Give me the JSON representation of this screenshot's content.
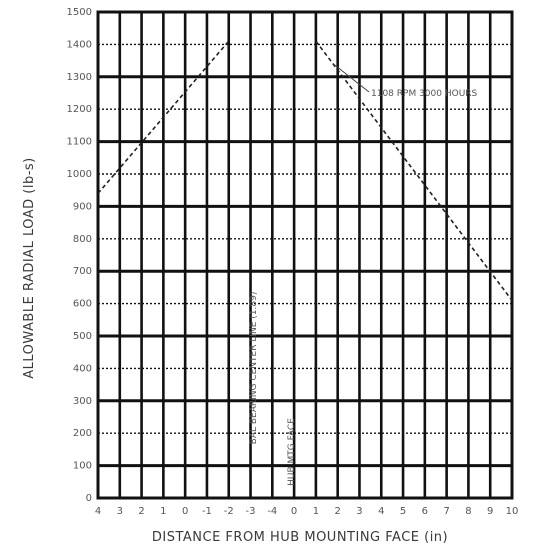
{
  "chart_data": {
    "type": "line",
    "ylabel": "ALLOWABLE RADIAL LOAD (lb-s)",
    "xlabel": "DISTANCE FROM HUB MOUNTING FACE (in)",
    "x_tick_labels": [
      "4",
      "3",
      "2",
      "1",
      "0",
      "-1",
      "-2",
      "-3",
      "-4",
      "0",
      "1",
      "2",
      "3",
      "4",
      "5",
      "6",
      "7",
      "8",
      "9",
      "10"
    ],
    "y_tick_labels": [
      "1500",
      "1400",
      "1300",
      "1200",
      "1100",
      "1000",
      "900",
      "800",
      "700",
      "600",
      "500",
      "400",
      "300",
      "200",
      "100",
      "0"
    ],
    "ylim": [
      0,
      1500
    ],
    "xlim": [
      0,
      19
    ],
    "grid": true,
    "series": [
      {
        "x": [
          0,
          6
        ],
        "y": [
          940,
          1410
        ]
      },
      {
        "x": [
          10,
          19
        ],
        "y": [
          1410,
          610
        ]
      }
    ],
    "annotations": {
      "curve_label": "1108 RPM 3000 HOURS",
      "bearing_line": "BAL BEARING CENTER LINE (1.89)",
      "hub_face": "HUB MTG FACE"
    }
  }
}
